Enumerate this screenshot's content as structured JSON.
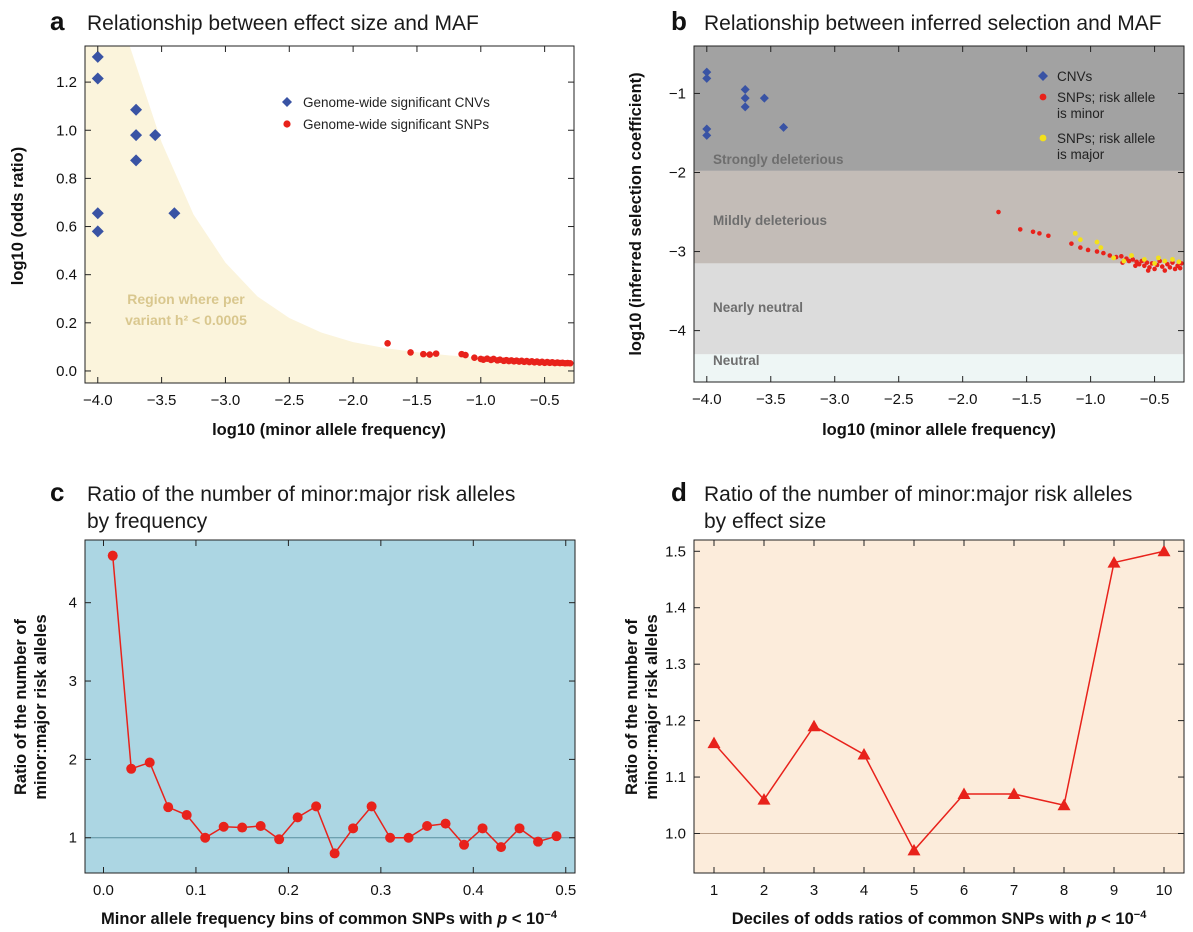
{
  "panels": [
    {
      "letter": "a",
      "title": "Relationship between effect size and MAF",
      "xlabel": "log10 (minor allele frequency)",
      "ylabel": "log10 (odds ratio)",
      "region_label_line1": "Region where per",
      "region_label_line2": "variant h² < 0.0005",
      "legend": [
        "Genome-wide significant CNVs",
        "Genome-wide significant SNPs"
      ]
    },
    {
      "letter": "b",
      "title": "Relationship between inferred selection and MAF",
      "xlabel": "log10 (minor allele frequency)",
      "ylabel": "log10 (inferred selection coefficient)",
      "bands": [
        "Strongly deleterious",
        "Mildly deleterious",
        "Nearly neutral",
        "Neutral"
      ],
      "legend": [
        "CNVs",
        "SNPs; risk allele is minor",
        "SNPs; risk allele is major"
      ]
    },
    {
      "letter": "c",
      "title_line1": "Ratio of the number of minor:major risk alleles",
      "title_line2": "by frequency",
      "xlabel": "Minor allele frequency bins of common SNPs with p < 10⁻⁴",
      "ylabel_line1": "Ratio of the number of",
      "ylabel_line2": "minor:major risk alleles"
    },
    {
      "letter": "d",
      "title_line1": "Ratio of the number of minor:major risk alleles",
      "title_line2": "by effect size",
      "xlabel": "Deciles of odds ratios of common SNPs with p < 10⁻⁴",
      "ylabel_line1": "Ratio of the number of",
      "ylabel_line2": "minor:major risk alleles"
    }
  ],
  "colors": {
    "cnv": "#3953a4",
    "snp_minor": "#e8221b",
    "snp_major": "#f3e01a",
    "region_fill": "#fbf4dc",
    "panel_c_bg": "#acd6e3",
    "panel_d_bg": "#fcecdb",
    "band_strong": "#a2a2a2",
    "band_mild": "#c3bcb7",
    "band_near": "#dcdcdc",
    "band_neutral": "#eef6f5"
  },
  "chart_data": [
    {
      "type": "scatter",
      "panel": "a",
      "xlim": [
        -4.1,
        -0.27
      ],
      "ylim": [
        -0.05,
        1.35
      ],
      "xticks": [
        -4.0,
        -3.5,
        -3.0,
        -2.5,
        -2.0,
        -1.5,
        -1.0,
        -0.5
      ],
      "yticks": [
        0.0,
        0.2,
        0.4,
        0.6,
        0.8,
        1.0,
        1.2
      ],
      "series": [
        {
          "name": "Genome-wide significant CNVs",
          "marker": "diamond",
          "points": [
            [
              -4.0,
              1.305
            ],
            [
              -4.0,
              1.215
            ],
            [
              -3.7,
              1.085
            ],
            [
              -3.7,
              0.98
            ],
            [
              -3.55,
              0.98
            ],
            [
              -3.7,
              0.875
            ],
            [
              -4.0,
              0.655
            ],
            [
              -3.4,
              0.655
            ],
            [
              -4.0,
              0.58
            ]
          ]
        },
        {
          "name": "Genome-wide significant SNPs",
          "marker": "circle",
          "points": [
            [
              -1.73,
              0.115
            ],
            [
              -1.55,
              0.077
            ],
            [
              -1.45,
              0.07
            ],
            [
              -1.4,
              0.068
            ],
            [
              -1.35,
              0.072
            ],
            [
              -1.15,
              0.07
            ],
            [
              -1.12,
              0.066
            ],
            [
              -1.05,
              0.055
            ],
            [
              -1.0,
              0.05
            ],
            [
              -0.98,
              0.047
            ],
            [
              -0.95,
              0.051
            ],
            [
              -0.92,
              0.046
            ],
            [
              -0.9,
              0.05
            ],
            [
              -0.87,
              0.044
            ],
            [
              -0.85,
              0.047
            ],
            [
              -0.82,
              0.042
            ],
            [
              -0.8,
              0.045
            ],
            [
              -0.78,
              0.041
            ],
            [
              -0.76,
              0.044
            ],
            [
              -0.74,
              0.04
            ],
            [
              -0.72,
              0.043
            ],
            [
              -0.7,
              0.039
            ],
            [
              -0.68,
              0.042
            ],
            [
              -0.66,
              0.038
            ],
            [
              -0.64,
              0.041
            ],
            [
              -0.62,
              0.037
            ],
            [
              -0.6,
              0.04
            ],
            [
              -0.58,
              0.036
            ],
            [
              -0.56,
              0.039
            ],
            [
              -0.54,
              0.035
            ],
            [
              -0.52,
              0.038
            ],
            [
              -0.5,
              0.034
            ],
            [
              -0.48,
              0.037
            ],
            [
              -0.46,
              0.034
            ],
            [
              -0.44,
              0.036
            ],
            [
              -0.42,
              0.033
            ],
            [
              -0.4,
              0.035
            ],
            [
              -0.38,
              0.033
            ],
            [
              -0.36,
              0.034
            ],
            [
              -0.34,
              0.032
            ],
            [
              -0.32,
              0.033
            ],
            [
              -0.3,
              0.032
            ]
          ]
        }
      ],
      "boundary_curve": [
        [
          -3.75,
          1.35
        ],
        [
          -3.5,
          0.95
        ],
        [
          -3.25,
          0.65
        ],
        [
          -3.0,
          0.45
        ],
        [
          -2.75,
          0.31
        ],
        [
          -2.5,
          0.22
        ],
        [
          -2.25,
          0.16
        ],
        [
          -2.0,
          0.12
        ],
        [
          -1.75,
          0.095
        ],
        [
          -1.5,
          0.078
        ],
        [
          -1.25,
          0.065
        ],
        [
          -1.0,
          0.055
        ],
        [
          -0.75,
          0.047
        ],
        [
          -0.5,
          0.042
        ],
        [
          -0.27,
          0.038
        ]
      ]
    },
    {
      "type": "scatter",
      "panel": "b",
      "xlim": [
        -4.1,
        -0.27
      ],
      "ylim": [
        -4.65,
        -0.4
      ],
      "xticks": [
        -4.0,
        -3.5,
        -3.0,
        -2.5,
        -2.0,
        -1.5,
        -1.0,
        -0.5
      ],
      "yticks": [
        -1,
        -2,
        -3,
        -4
      ],
      "band_ranges": [
        [
          -1.98,
          -0.4
        ],
        [
          -3.15,
          -1.98
        ],
        [
          -4.3,
          -3.15
        ],
        [
          -4.65,
          -4.3
        ]
      ],
      "series": [
        {
          "name": "CNVs",
          "marker": "diamond",
          "points": [
            [
              -4.0,
              -0.73
            ],
            [
              -4.0,
              -0.81
            ],
            [
              -3.7,
              -0.95
            ],
            [
              -3.7,
              -1.06
            ],
            [
              -3.55,
              -1.06
            ],
            [
              -3.7,
              -1.17
            ],
            [
              -3.4,
              -1.43
            ],
            [
              -4.0,
              -1.45
            ],
            [
              -4.0,
              -1.53
            ]
          ]
        },
        {
          "name": "SNPs; risk allele is minor",
          "marker": "circle",
          "points": [
            [
              -1.72,
              -2.5
            ],
            [
              -1.55,
              -2.72
            ],
            [
              -1.45,
              -2.75
            ],
            [
              -1.4,
              -2.77
            ],
            [
              -1.33,
              -2.8
            ],
            [
              -1.15,
              -2.9
            ],
            [
              -1.08,
              -2.95
            ],
            [
              -1.02,
              -2.98
            ],
            [
              -0.95,
              -3.0
            ],
            [
              -0.9,
              -3.02
            ],
            [
              -0.85,
              -3.05
            ],
            [
              -0.8,
              -3.07
            ],
            [
              -0.76,
              -3.06
            ],
            [
              -0.72,
              -3.09
            ],
            [
              -0.7,
              -3.12
            ],
            [
              -0.67,
              -3.1
            ],
            [
              -0.64,
              -3.13
            ],
            [
              -0.62,
              -3.16
            ],
            [
              -0.6,
              -3.12
            ],
            [
              -0.58,
              -3.18
            ],
            [
              -0.56,
              -3.14
            ],
            [
              -0.54,
              -3.2
            ],
            [
              -0.52,
              -3.15
            ],
            [
              -0.5,
              -3.22
            ],
            [
              -0.48,
              -3.17
            ],
            [
              -0.46,
              -3.12
            ],
            [
              -0.44,
              -3.19
            ],
            [
              -0.42,
              -3.24
            ],
            [
              -0.4,
              -3.16
            ],
            [
              -0.38,
              -3.2
            ],
            [
              -0.36,
              -3.14
            ],
            [
              -0.34,
              -3.22
            ],
            [
              -0.32,
              -3.18
            ],
            [
              -0.3,
              -3.21
            ],
            [
              -0.29,
              -3.15
            ],
            [
              -0.55,
              -3.24
            ],
            [
              -0.65,
              -3.18
            ],
            [
              -0.75,
              -3.14
            ]
          ]
        },
        {
          "name": "SNPs; risk allele is major",
          "marker": "circle",
          "points": [
            [
              -1.12,
              -2.77
            ],
            [
              -1.08,
              -2.85
            ],
            [
              -0.95,
              -2.88
            ],
            [
              -0.92,
              -2.95
            ],
            [
              -0.82,
              -3.08
            ],
            [
              -0.74,
              -3.12
            ],
            [
              -0.68,
              -3.05
            ],
            [
              -0.58,
              -3.1
            ],
            [
              -0.5,
              -3.15
            ],
            [
              -0.47,
              -3.08
            ],
            [
              -0.42,
              -3.12
            ],
            [
              -0.36,
              -3.1
            ],
            [
              -0.31,
              -3.13
            ]
          ]
        }
      ]
    },
    {
      "type": "line",
      "panel": "c",
      "xlim": [
        -0.02,
        0.51
      ],
      "ylim": [
        0.55,
        4.8
      ],
      "xticks": [
        0.0,
        0.1,
        0.2,
        0.3,
        0.4,
        0.5
      ],
      "yticks": [
        1,
        2,
        3,
        4
      ],
      "reference_line": 1,
      "x": [
        0.01,
        0.03,
        0.05,
        0.07,
        0.09,
        0.11,
        0.13,
        0.15,
        0.17,
        0.19,
        0.21,
        0.23,
        0.25,
        0.27,
        0.29,
        0.31,
        0.33,
        0.35,
        0.37,
        0.39,
        0.41,
        0.43,
        0.45,
        0.47,
        0.49
      ],
      "values": [
        4.6,
        1.88,
        1.96,
        1.39,
        1.29,
        1.0,
        1.14,
        1.13,
        1.15,
        0.98,
        1.26,
        1.4,
        0.8,
        1.12,
        1.4,
        1.0,
        1.0,
        1.15,
        1.18,
        0.91,
        1.12,
        0.88,
        1.12,
        0.95,
        1.02
      ]
    },
    {
      "type": "line",
      "panel": "d",
      "xlim": [
        0.6,
        10.4
      ],
      "ylim": [
        0.93,
        1.52
      ],
      "xticks": [
        1,
        2,
        3,
        4,
        5,
        6,
        7,
        8,
        9,
        10
      ],
      "yticks": [
        1.0,
        1.1,
        1.2,
        1.3,
        1.4,
        1.5
      ],
      "reference_line": 1.0,
      "x": [
        1,
        2,
        3,
        4,
        5,
        6,
        7,
        8,
        9,
        10
      ],
      "values": [
        1.16,
        1.06,
        1.19,
        1.14,
        0.97,
        1.07,
        1.07,
        1.05,
        1.48,
        1.5
      ]
    }
  ]
}
